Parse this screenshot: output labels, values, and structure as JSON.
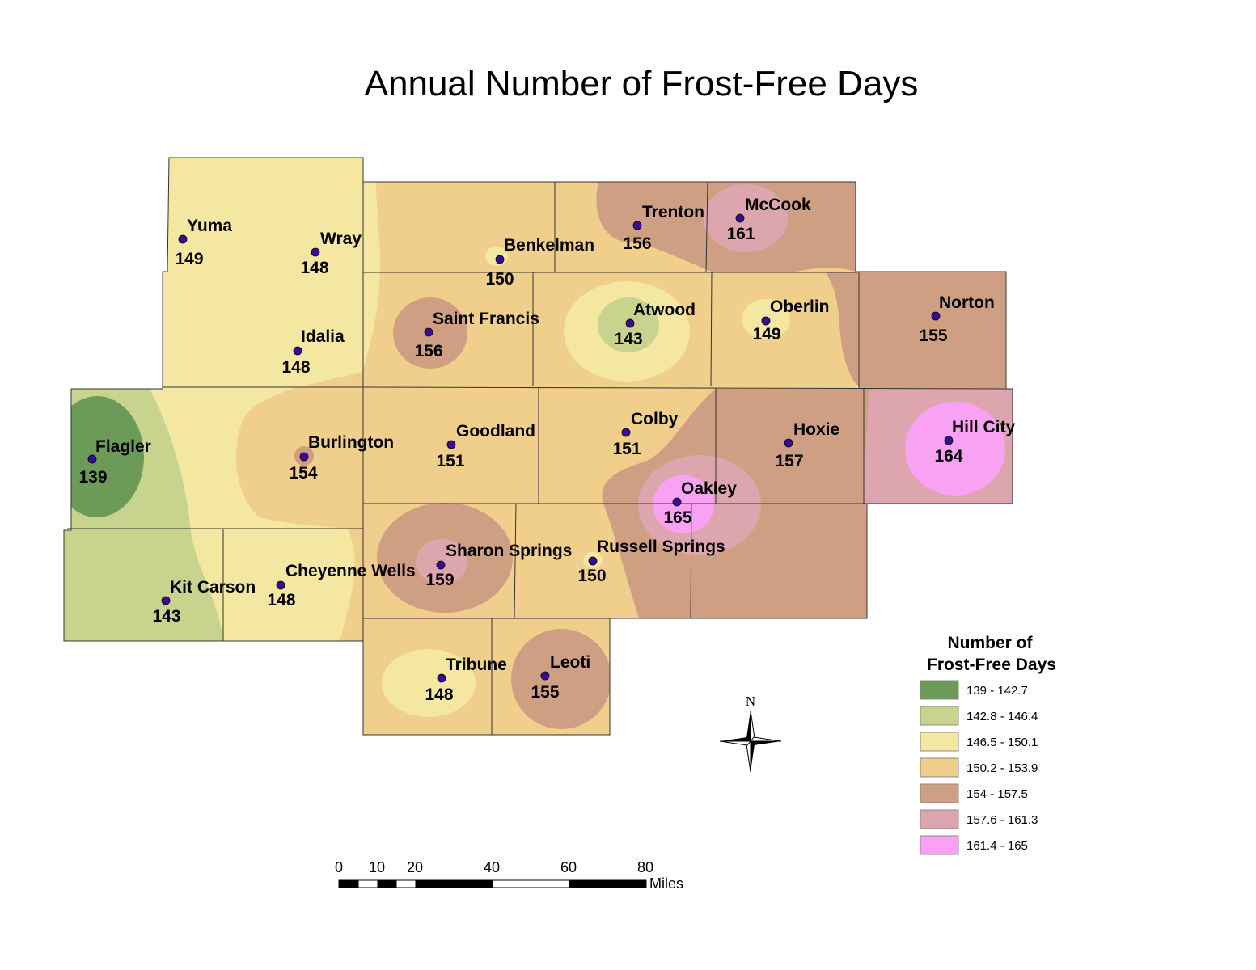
{
  "title": "Annual Number of Frost-Free Days",
  "colors": {
    "c1": "#6b9a59",
    "c2": "#c8d48e",
    "c3": "#f3e7a2",
    "c4": "#efcf8b",
    "c5": "#cf9f83",
    "c6": "#dda6ae",
    "c7": "#f9a2f4"
  },
  "stations": [
    {
      "name": "Yuma",
      "value": "149"
    },
    {
      "name": "Wray",
      "value": "148"
    },
    {
      "name": "Idalia",
      "value": "148"
    },
    {
      "name": "Benkelman",
      "value": "150"
    },
    {
      "name": "Trenton",
      "value": "156"
    },
    {
      "name": "McCook",
      "value": "161"
    },
    {
      "name": "Saint Francis",
      "value": "156"
    },
    {
      "name": "Atwood",
      "value": "143"
    },
    {
      "name": "Oberlin",
      "value": "149"
    },
    {
      "name": "Norton",
      "value": "155"
    },
    {
      "name": "Flagler",
      "value": "139"
    },
    {
      "name": "Burlington",
      "value": "154"
    },
    {
      "name": "Goodland",
      "value": "151"
    },
    {
      "name": "Colby",
      "value": "151"
    },
    {
      "name": "Hoxie",
      "value": "157"
    },
    {
      "name": "Hill City",
      "value": "164"
    },
    {
      "name": "Oakley",
      "value": "165"
    },
    {
      "name": "Sharon Springs",
      "value": "159"
    },
    {
      "name": "Russell Springs",
      "value": "150"
    },
    {
      "name": "Kit Carson",
      "value": "143"
    },
    {
      "name": "Cheyenne Wells",
      "value": "148"
    },
    {
      "name": "Tribune",
      "value": "148"
    },
    {
      "name": "Leoti",
      "value": "155"
    }
  ],
  "legend": {
    "title_line1": "Number of",
    "title_line2": "Frost-Free Days",
    "classes": [
      {
        "label": "139 - 142.7",
        "color": "#6b9a59"
      },
      {
        "label": "142.8 - 146.4",
        "color": "#c8d48e"
      },
      {
        "label": "146.5 - 150.1",
        "color": "#f3e7a2"
      },
      {
        "label": "150.2 - 153.9",
        "color": "#efcf8b"
      },
      {
        "label": "154 - 157.5",
        "color": "#cf9f83"
      },
      {
        "label": "157.6 - 161.3",
        "color": "#dda6ae"
      },
      {
        "label": "161.4 - 165",
        "color": "#f9a2f4"
      }
    ]
  },
  "scale_bar": {
    "ticks": [
      "0",
      "10",
      "20",
      "40",
      "60",
      "80"
    ],
    "unit": "Miles"
  },
  "north_arrow": {
    "label": "N"
  },
  "station_marker_color": "#3a0a99"
}
